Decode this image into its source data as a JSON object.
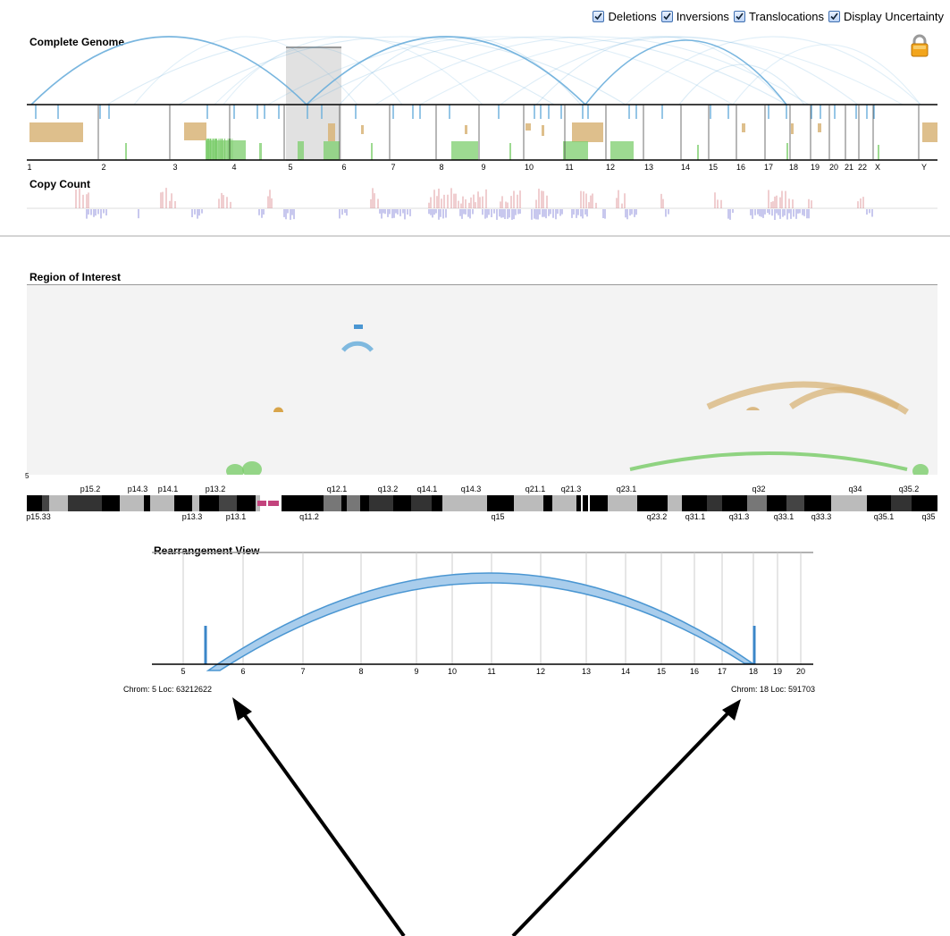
{
  "options": [
    {
      "label": "Deletions",
      "checked": true
    },
    {
      "label": "Inversions",
      "checked": true
    },
    {
      "label": "Translocations",
      "checked": true
    },
    {
      "label": "Display Uncertainty",
      "checked": true
    }
  ],
  "genome": {
    "title": "Complete Genome",
    "chromosomes": [
      "1",
      "2",
      "3",
      "4",
      "5",
      "6",
      "7",
      "8",
      "9",
      "10",
      "11",
      "12",
      "13",
      "14",
      "15",
      "16",
      "17",
      "18",
      "19",
      "20",
      "21",
      "22",
      "X",
      "Y"
    ],
    "selected_chromosome": "5"
  },
  "copy_count": {
    "title": "Copy Count"
  },
  "region": {
    "title": "Region of Interest",
    "axis_start_label": "5",
    "bands_top": [
      "p15.2",
      "p14.3",
      "p14.1",
      "p13.2",
      "q12.1",
      "q13.2",
      "q14.1",
      "q14.3",
      "q21.1",
      "q21.3",
      "q23.1",
      "q32",
      "q34",
      "q35.2"
    ],
    "bands_bottom": [
      "p15.33",
      "p13.3",
      "p13.1",
      "q11.2",
      "q15",
      "q23.2",
      "q31.1",
      "q31.3",
      "q33.1",
      "q33.3",
      "q35.1",
      "q35"
    ]
  },
  "rearrangement": {
    "title": "Rearrangement View",
    "ticks": [
      "5",
      "6",
      "7",
      "8",
      "9",
      "10",
      "11",
      "12",
      "13",
      "14",
      "15",
      "16",
      "17",
      "18",
      "19",
      "20"
    ],
    "left_coord": "Chrom: 5 Loc: 63212622",
    "right_coord": "Chrom: 18 Loc: 591703"
  },
  "colors": {
    "translocation": "#6aaedb",
    "inversion": "#d8b478",
    "deletion": "#7ccd6c",
    "gain": "#d9868a",
    "loss": "#7d7fd6"
  },
  "icons": {
    "lock": "lock-icon"
  }
}
